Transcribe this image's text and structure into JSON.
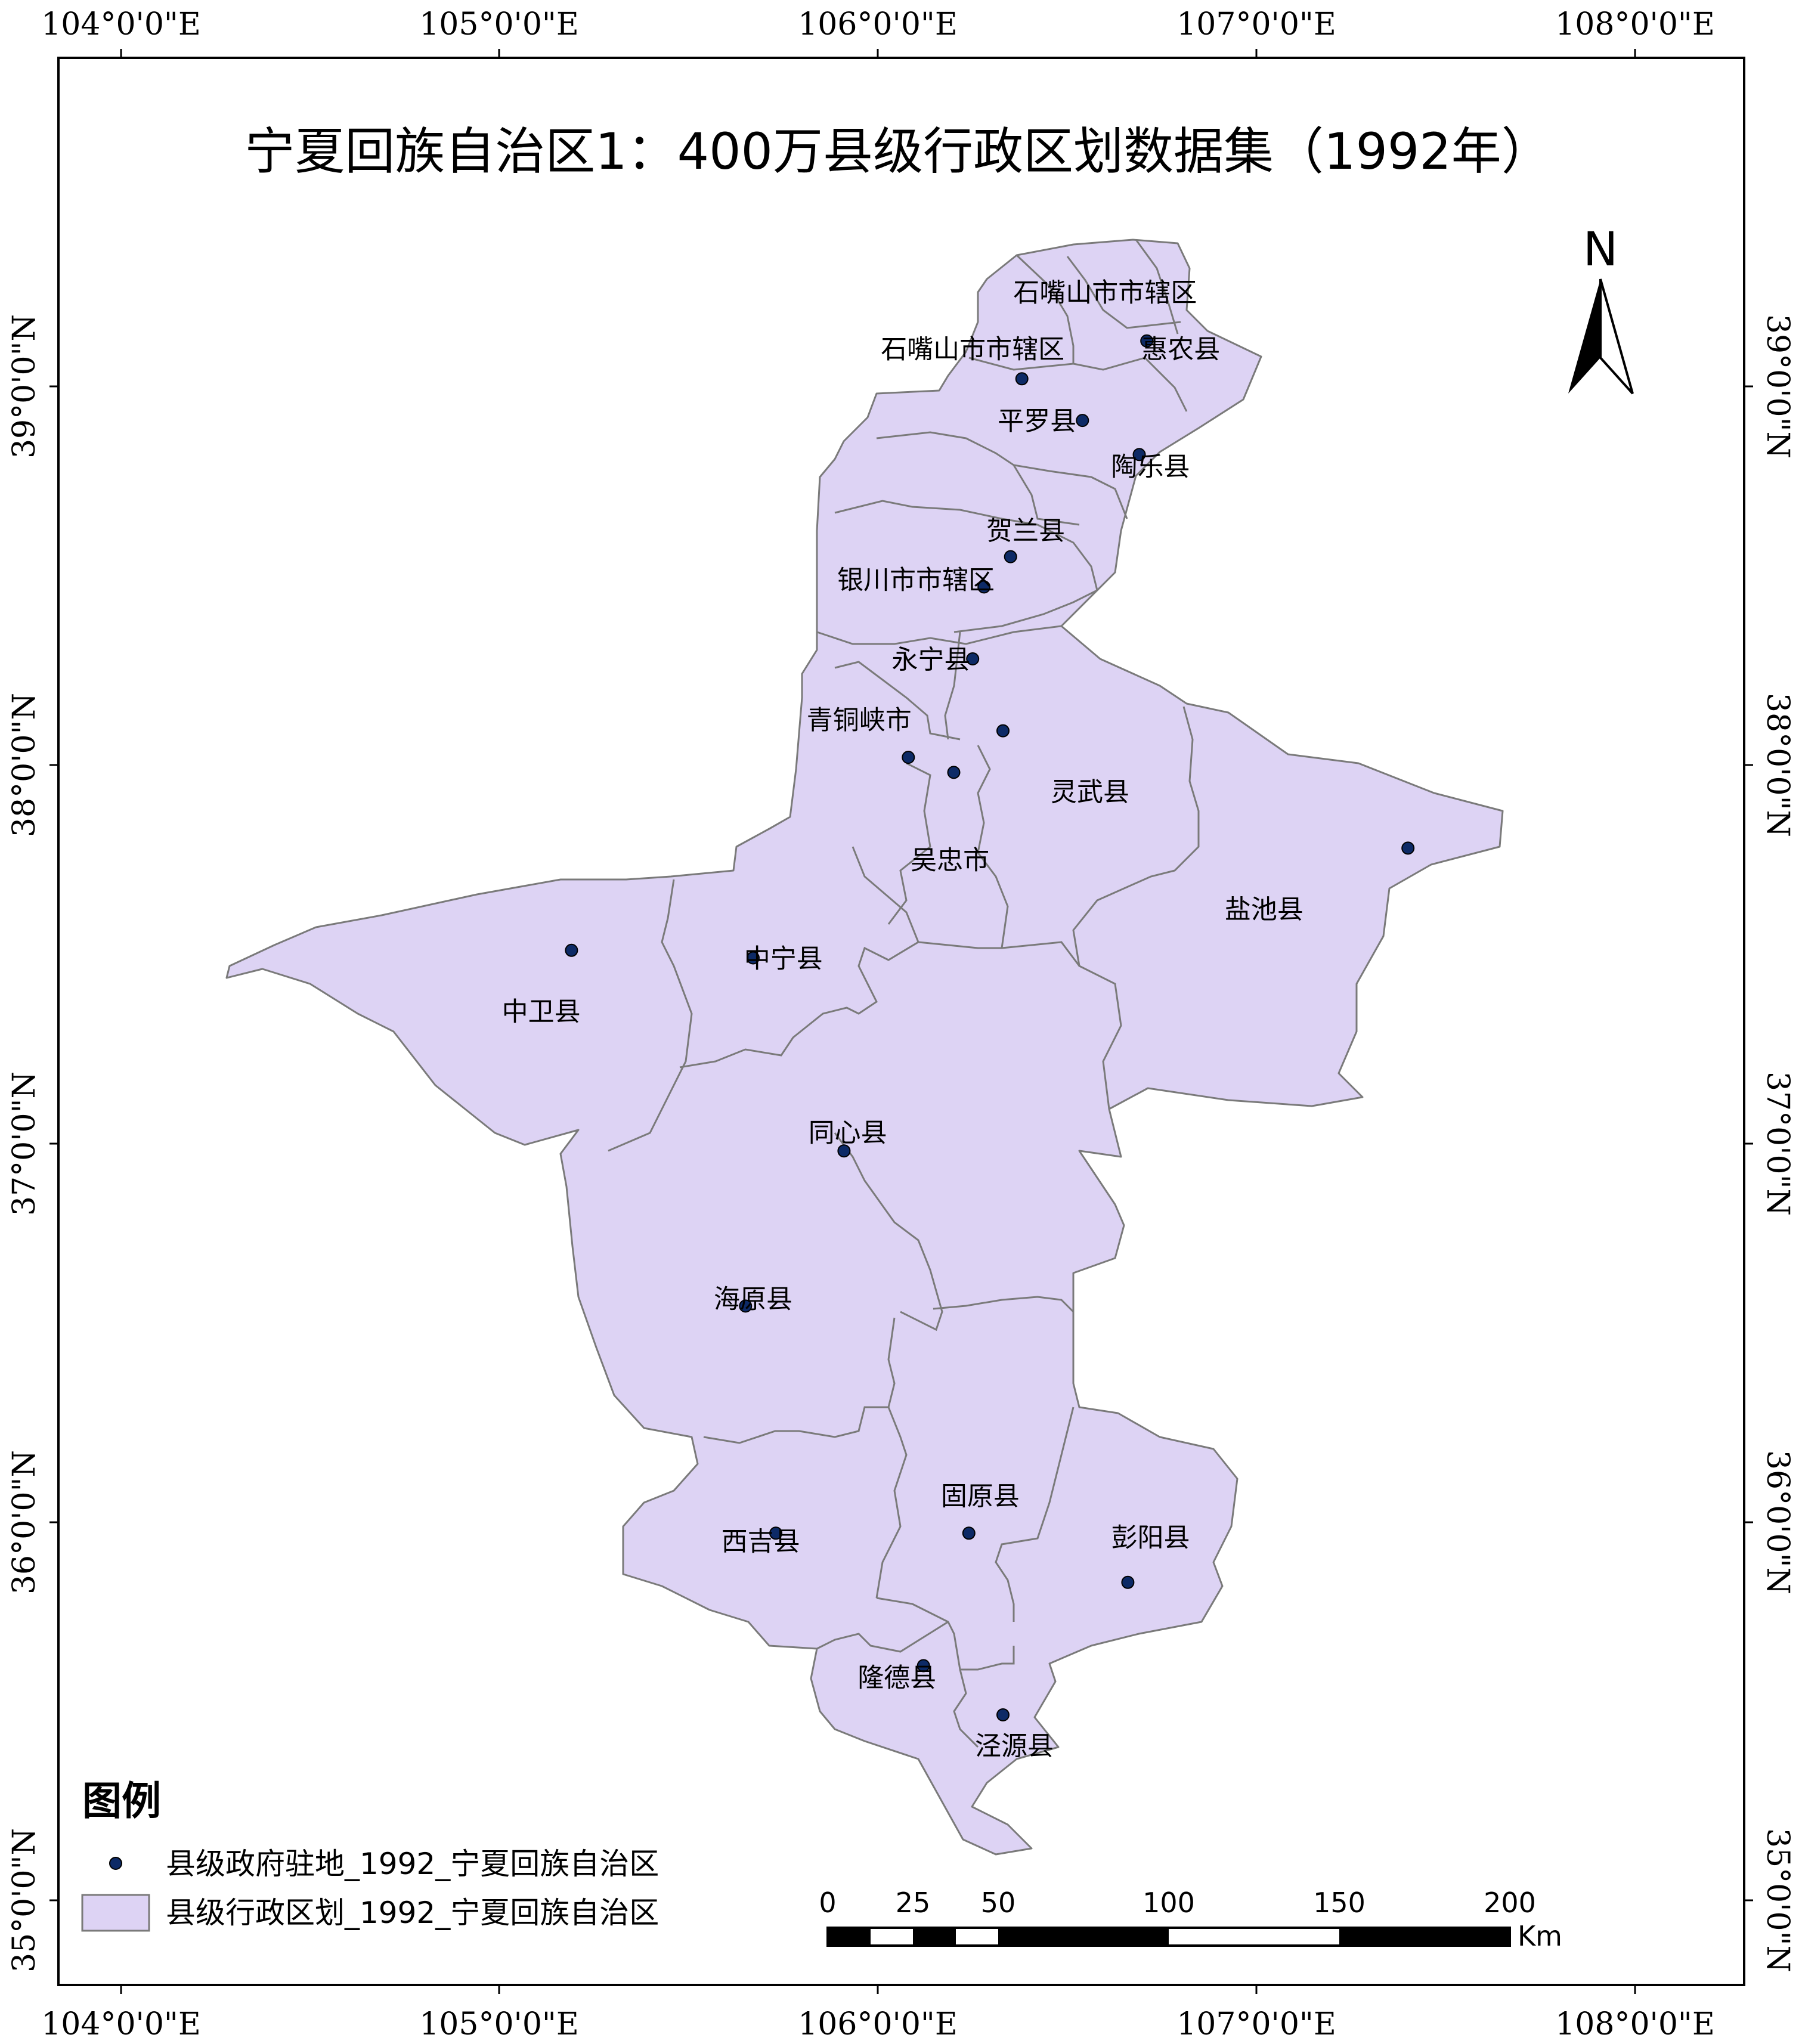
{
  "title": "宁夏回族自治区1：400万县级行政区划数据集（1992年）",
  "colors": {
    "region_fill": "#DDD3F4",
    "region_stroke": "#7a7a7a",
    "seat_fill": "#0d2a66",
    "frame": "#000000"
  },
  "axes": {
    "lon_ticks": [
      "104°0'0\"E",
      "105°0'0\"E",
      "106°0'0\"E",
      "107°0'0\"E",
      "108°0'0\"E"
    ],
    "lat_ticks": [
      "39°0'0\"N",
      "38°0'0\"N",
      "37°0'0\"N",
      "36°0'0\"N",
      "35°0'0\"N"
    ]
  },
  "north_arrow": {
    "label": "N",
    "icon": "north-arrow-icon"
  },
  "counties": [
    {
      "name": "石嘴山市市辖区",
      "lon": 106.6,
      "lat": 39.25
    },
    {
      "name": "石嘴山市市辖区",
      "lon": 106.25,
      "lat": 39.1
    },
    {
      "name": "惠农县",
      "lon": 106.8,
      "lat": 39.1
    },
    {
      "name": "平罗县",
      "lon": 106.42,
      "lat": 38.91
    },
    {
      "name": "陶乐县",
      "lon": 106.72,
      "lat": 38.79
    },
    {
      "name": "贺兰县",
      "lon": 106.39,
      "lat": 38.62
    },
    {
      "name": "银川市市辖区",
      "lon": 106.1,
      "lat": 38.49
    },
    {
      "name": "永宁县",
      "lon": 106.14,
      "lat": 38.28
    },
    {
      "name": "青铜峡市",
      "lon": 105.95,
      "lat": 38.12
    },
    {
      "name": "灵武县",
      "lon": 106.56,
      "lat": 37.93
    },
    {
      "name": "吴忠市",
      "lon": 106.19,
      "lat": 37.75
    },
    {
      "name": "盐池县",
      "lon": 107.02,
      "lat": 37.62
    },
    {
      "name": "中宁县",
      "lon": 105.75,
      "lat": 37.49
    },
    {
      "name": "中卫县",
      "lon": 105.11,
      "lat": 37.35
    },
    {
      "name": "同心县",
      "lon": 105.92,
      "lat": 37.03
    },
    {
      "name": "海原县",
      "lon": 105.67,
      "lat": 36.59
    },
    {
      "name": "固原县",
      "lon": 106.27,
      "lat": 36.07
    },
    {
      "name": "彭阳县",
      "lon": 106.72,
      "lat": 35.96
    },
    {
      "name": "西吉县",
      "lon": 105.69,
      "lat": 35.95
    },
    {
      "name": "隆德县",
      "lon": 106.05,
      "lat": 35.59
    },
    {
      "name": "泾源县",
      "lon": 106.36,
      "lat": 35.41
    }
  ],
  "seats": [
    {
      "lon": 106.71,
      "lat": 39.12
    },
    {
      "lon": 106.38,
      "lat": 39.02
    },
    {
      "lon": 106.54,
      "lat": 38.91
    },
    {
      "lon": 106.69,
      "lat": 38.82
    },
    {
      "lon": 106.35,
      "lat": 38.55
    },
    {
      "lon": 106.28,
      "lat": 38.47
    },
    {
      "lon": 106.25,
      "lat": 38.28
    },
    {
      "lon": 106.33,
      "lat": 38.09
    },
    {
      "lon": 106.08,
      "lat": 38.02
    },
    {
      "lon": 106.2,
      "lat": 37.98
    },
    {
      "lon": 107.4,
      "lat": 37.78
    },
    {
      "lon": 105.19,
      "lat": 37.51
    },
    {
      "lon": 105.67,
      "lat": 37.49
    },
    {
      "lon": 105.91,
      "lat": 36.98
    },
    {
      "lon": 105.65,
      "lat": 36.57
    },
    {
      "lon": 106.24,
      "lat": 35.97
    },
    {
      "lon": 105.73,
      "lat": 35.97
    },
    {
      "lon": 106.66,
      "lat": 35.84
    },
    {
      "lon": 106.12,
      "lat": 35.62
    },
    {
      "lon": 106.33,
      "lat": 35.49
    }
  ],
  "legend": {
    "title": "图例",
    "items": [
      {
        "symbol": "point",
        "label": "县级政府驻地_1992_宁夏回族自治区"
      },
      {
        "symbol": "polygon",
        "label": "县级行政区划_1992_宁夏回族自治区"
      }
    ]
  },
  "scale_bar": {
    "ticks": [
      "0",
      "25",
      "50",
      "100",
      "150",
      "200"
    ],
    "unit": "Km"
  }
}
